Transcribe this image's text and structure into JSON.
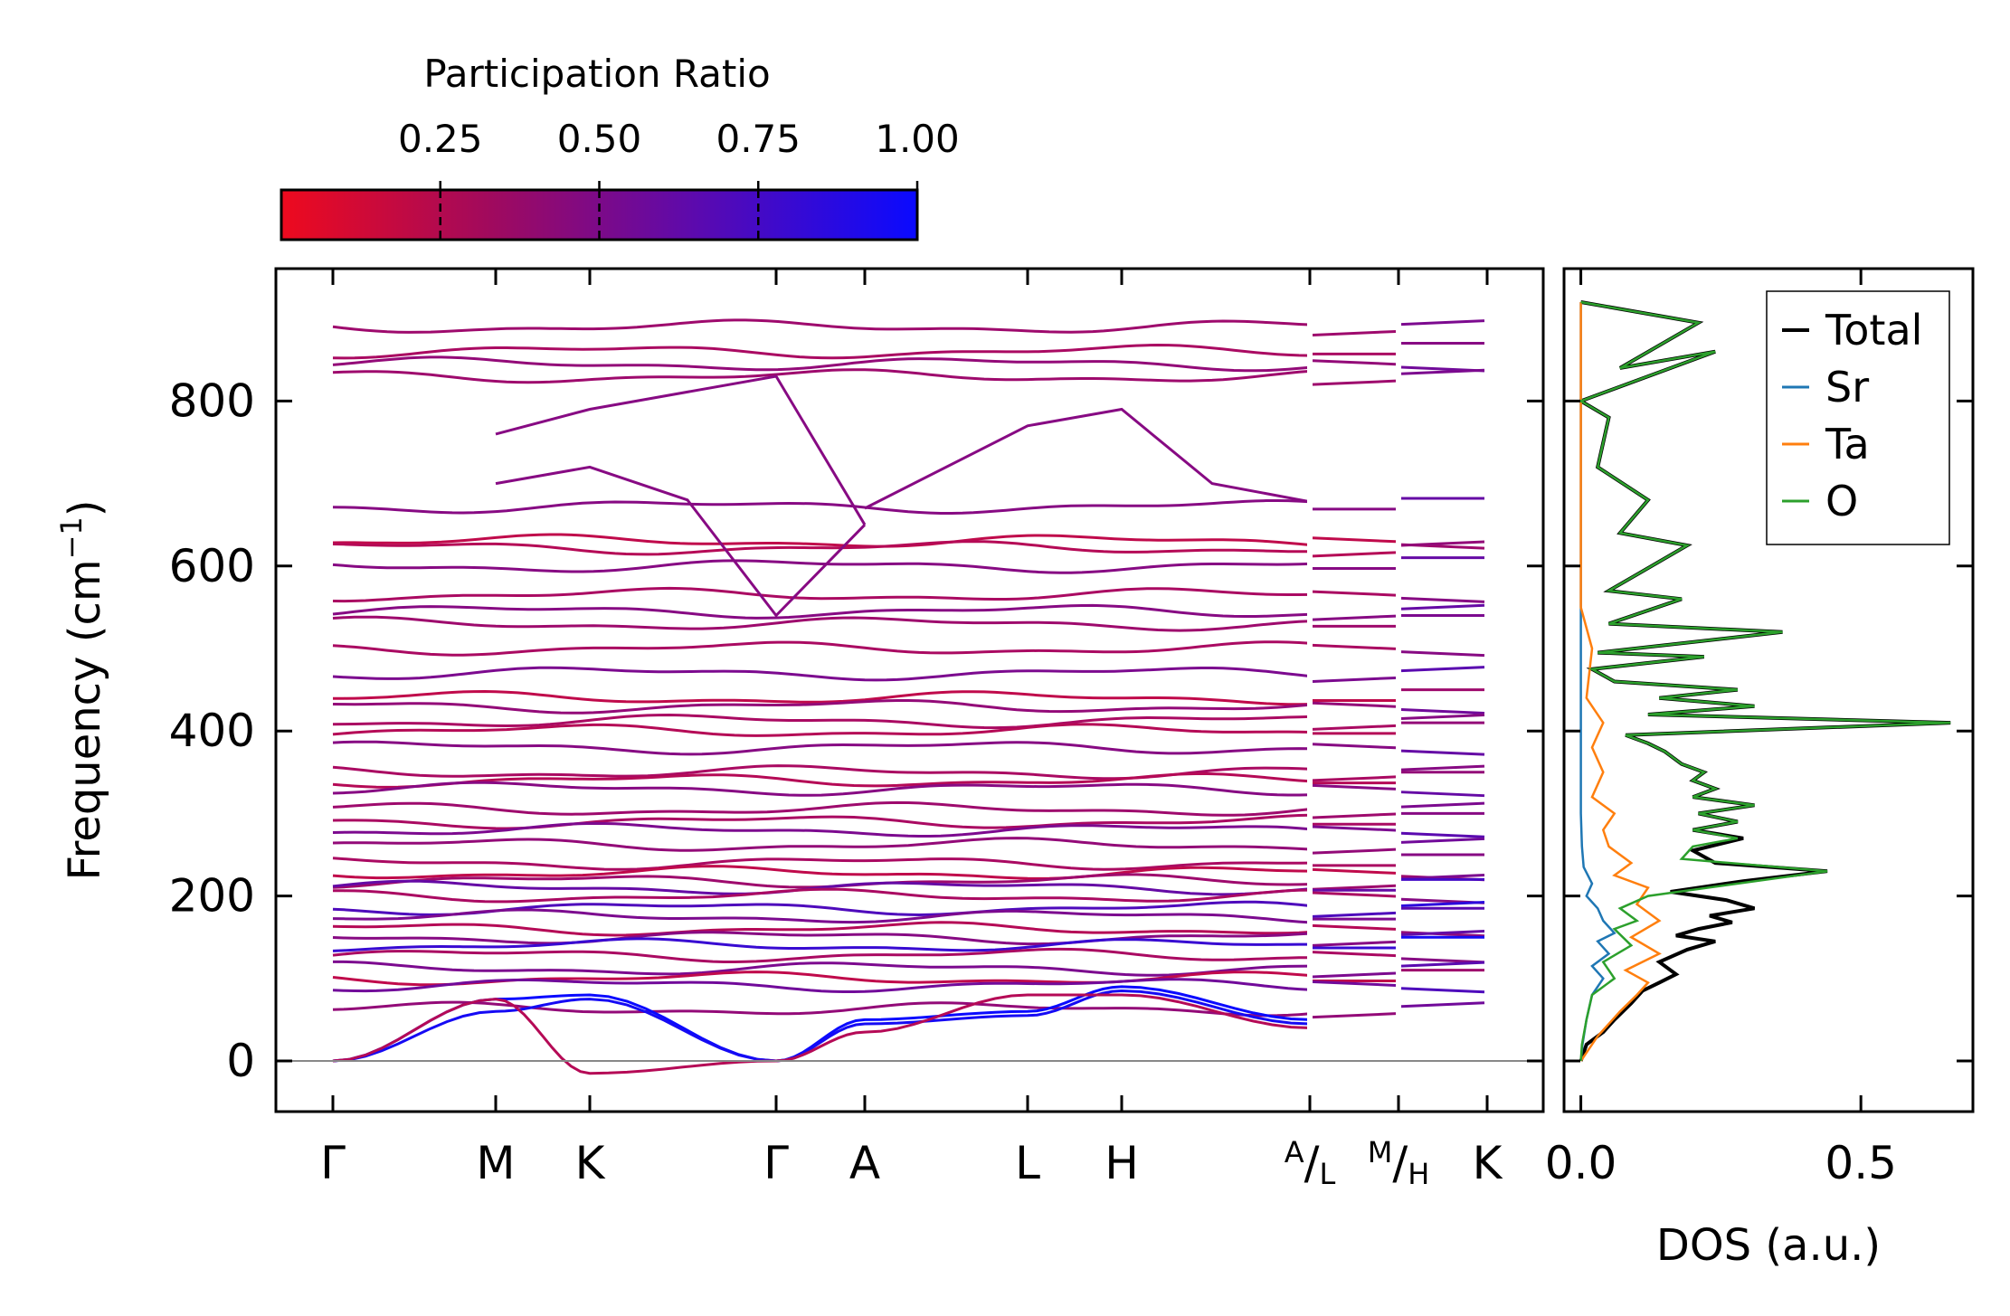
{
  "chart_data": [
    {
      "type": "line",
      "subtype": "phonon-band-structure",
      "ylabel": "Frequency (cm",
      "ylabel_sup": "−1",
      "ylabel_tail": ")",
      "ylim": [
        -60,
        960
      ],
      "yticks": [
        0,
        200,
        400,
        600,
        800
      ],
      "kpath_labels": [
        "Γ",
        "M",
        "K",
        "Γ",
        "A",
        "L",
        "H",
        "A",
        "L",
        "M",
        "H",
        "K"
      ],
      "kpath_segments": [
        {
          "from": "Γ",
          "to": "M",
          "length": 1.0
        },
        {
          "from": "M",
          "to": "K",
          "length": 0.577
        },
        {
          "from": "K",
          "to": "Γ",
          "length": 1.155
        },
        {
          "from": "Γ",
          "to": "A",
          "length": 0.55
        },
        {
          "from": "A",
          "to": "L",
          "length": 1.0
        },
        {
          "from": "L",
          "to": "H",
          "length": 0.577
        },
        {
          "from": "H",
          "to": "A",
          "length": 1.155
        },
        {
          "from": "L",
          "to": "M",
          "length": 0.55
        },
        {
          "from": "H",
          "to": "K",
          "length": 0.55
        }
      ],
      "zero_line": 0,
      "colorbar": {
        "label": "Participation Ratio",
        "range": [
          0.0,
          1.0
        ],
        "ticks": [
          "0.25",
          "0.50",
          "0.75",
          "1.00"
        ],
        "tick_values": [
          0.25,
          0.5,
          0.75,
          1.0
        ],
        "colormap": [
          "#ee0a1e",
          "#9a0a6a",
          "#5a0ab0",
          "#0a0aff"
        ]
      },
      "flat_bands": [
        {
          "f": 890,
          "pr": 0.35
        },
        {
          "f": 860,
          "pr": 0.3
        },
        {
          "f": 845,
          "pr": 0.4
        },
        {
          "f": 830,
          "pr": 0.35
        },
        {
          "f": 672,
          "pr": 0.45
        },
        {
          "f": 630,
          "pr": 0.2
        },
        {
          "f": 622,
          "pr": 0.25
        },
        {
          "f": 600,
          "pr": 0.45
        },
        {
          "f": 565,
          "pr": 0.3
        },
        {
          "f": 545,
          "pr": 0.45
        },
        {
          "f": 530,
          "pr": 0.35
        },
        {
          "f": 500,
          "pr": 0.3
        },
        {
          "f": 470,
          "pr": 0.5
        },
        {
          "f": 440,
          "pr": 0.2
        },
        {
          "f": 430,
          "pr": 0.4
        },
        {
          "f": 412,
          "pr": 0.3
        },
        {
          "f": 400,
          "pr": 0.25
        },
        {
          "f": 380,
          "pr": 0.45
        },
        {
          "f": 350,
          "pr": 0.3
        },
        {
          "f": 340,
          "pr": 0.25
        },
        {
          "f": 330,
          "pr": 0.45
        },
        {
          "f": 305,
          "pr": 0.35
        },
        {
          "f": 290,
          "pr": 0.3
        },
        {
          "f": 280,
          "pr": 0.5
        },
        {
          "f": 262,
          "pr": 0.4
        },
        {
          "f": 240,
          "pr": 0.3
        },
        {
          "f": 228,
          "pr": 0.2
        },
        {
          "f": 218,
          "pr": 0.35
        },
        {
          "f": 210,
          "pr": 0.6
        },
        {
          "f": 200,
          "pr": 0.3
        },
        {
          "f": 185,
          "pr": 0.7
        },
        {
          "f": 175,
          "pr": 0.5
        },
        {
          "f": 160,
          "pr": 0.25
        },
        {
          "f": 150,
          "pr": 0.45
        },
        {
          "f": 140,
          "pr": 0.8
        },
        {
          "f": 128,
          "pr": 0.3
        },
        {
          "f": 112,
          "pr": 0.5
        },
        {
          "f": 100,
          "pr": 0.2
        },
        {
          "f": 92,
          "pr": 0.55
        },
        {
          "f": 63,
          "pr": 0.4
        }
      ]
    },
    {
      "type": "line",
      "subtype": "density-of-states",
      "xlabel": "DOS (a.u.)",
      "xlim": [
        -0.03,
        0.7
      ],
      "xticks": [
        0.0,
        0.5
      ],
      "xtick_labels": [
        "0.0",
        "0.5"
      ],
      "ylim": [
        -60,
        960
      ],
      "legend_placement": "top-right",
      "series": [
        {
          "name": "Total",
          "color": "#000000",
          "points": [
            [
              0,
              0
            ],
            [
              0.01,
              20
            ],
            [
              0.04,
              35
            ],
            [
              0.06,
              50
            ],
            [
              0.09,
              70
            ],
            [
              0.11,
              85
            ],
            [
              0.14,
              95
            ],
            [
              0.17,
              105
            ],
            [
              0.14,
              120
            ],
            [
              0.19,
              135
            ],
            [
              0.24,
              145
            ],
            [
              0.17,
              152
            ],
            [
              0.21,
              160
            ],
            [
              0.27,
              168
            ],
            [
              0.23,
              176
            ],
            [
              0.31,
              185
            ],
            [
              0.26,
              195
            ],
            [
              0.16,
              205
            ],
            [
              0.29,
              218
            ],
            [
              0.44,
              230
            ],
            [
              0.24,
              240
            ],
            [
              0.2,
              255
            ],
            [
              0.29,
              270
            ],
            [
              0.2,
              280
            ],
            [
              0.28,
              290
            ],
            [
              0.21,
              300
            ],
            [
              0.31,
              310
            ],
            [
              0.2,
              320
            ],
            [
              0.24,
              330
            ],
            [
              0.2,
              340
            ],
            [
              0.22,
              350
            ],
            [
              0.18,
              360
            ],
            [
              0.15,
              375
            ],
            [
              0.12,
              385
            ],
            [
              0.08,
              395
            ],
            [
              0.66,
              410
            ],
            [
              0.12,
              420
            ],
            [
              0.31,
              430
            ],
            [
              0.14,
              440
            ],
            [
              0.28,
              450
            ],
            [
              0.06,
              460
            ],
            [
              0.02,
              475
            ],
            [
              0.22,
              490
            ],
            [
              0.03,
              495
            ],
            [
              0.36,
              520
            ],
            [
              0.05,
              530
            ],
            [
              0.18,
              560
            ],
            [
              0.05,
              570
            ],
            [
              0.19,
              625
            ],
            [
              0.07,
              640
            ],
            [
              0.12,
              680
            ],
            [
              0.03,
              720
            ],
            [
              0.05,
              780
            ],
            [
              0.0,
              800
            ],
            [
              0.24,
              860
            ],
            [
              0.07,
              840
            ],
            [
              0.21,
              895
            ],
            [
              0.0,
              920
            ]
          ]
        },
        {
          "name": "Sr",
          "color": "#1f77b4",
          "points": [
            [
              0,
              0
            ],
            [
              0.003,
              20
            ],
            [
              0.01,
              50
            ],
            [
              0.02,
              80
            ],
            [
              0.04,
              100
            ],
            [
              0.02,
              115
            ],
            [
              0.05,
              130
            ],
            [
              0.03,
              145
            ],
            [
              0.06,
              155
            ],
            [
              0.04,
              170
            ],
            [
              0.03,
              185
            ],
            [
              0.01,
              200
            ],
            [
              0.02,
              215
            ],
            [
              0.005,
              235
            ],
            [
              0.002,
              260
            ],
            [
              0.0,
              300
            ],
            [
              0.0,
              920
            ]
          ]
        },
        {
          "name": "Ta",
          "color": "#ff7f0e",
          "points": [
            [
              0,
              0
            ],
            [
              0.03,
              30
            ],
            [
              0.07,
              60
            ],
            [
              0.1,
              80
            ],
            [
              0.12,
              95
            ],
            [
              0.08,
              110
            ],
            [
              0.14,
              130
            ],
            [
              0.09,
              150
            ],
            [
              0.14,
              170
            ],
            [
              0.1,
              190
            ],
            [
              0.12,
              210
            ],
            [
              0.06,
              225
            ],
            [
              0.09,
              240
            ],
            [
              0.05,
              260
            ],
            [
              0.04,
              280
            ],
            [
              0.06,
              300
            ],
            [
              0.02,
              320
            ],
            [
              0.04,
              350
            ],
            [
              0.02,
              380
            ],
            [
              0.04,
              410
            ],
            [
              0.01,
              440
            ],
            [
              0.02,
              500
            ],
            [
              0.0,
              550
            ],
            [
              0.0,
              920
            ]
          ]
        },
        {
          "name": "O",
          "color": "#2ca02c",
          "points": [
            [
              0,
              0
            ],
            [
              0.002,
              20
            ],
            [
              0.01,
              50
            ],
            [
              0.02,
              80
            ],
            [
              0.06,
              100
            ],
            [
              0.04,
              120
            ],
            [
              0.09,
              140
            ],
            [
              0.06,
              160
            ],
            [
              0.1,
              170
            ],
            [
              0.07,
              185
            ],
            [
              0.12,
              200
            ],
            [
              0.44,
              230
            ],
            [
              0.18,
              245
            ],
            [
              0.2,
              260
            ],
            [
              0.28,
              270
            ],
            [
              0.2,
              280
            ],
            [
              0.28,
              290
            ],
            [
              0.21,
              300
            ],
            [
              0.31,
              310
            ],
            [
              0.2,
              320
            ],
            [
              0.24,
              330
            ],
            [
              0.2,
              340
            ],
            [
              0.22,
              350
            ],
            [
              0.18,
              360
            ],
            [
              0.15,
              375
            ],
            [
              0.12,
              385
            ],
            [
              0.08,
              395
            ],
            [
              0.66,
              410
            ],
            [
              0.12,
              420
            ],
            [
              0.31,
              430
            ],
            [
              0.14,
              440
            ],
            [
              0.28,
              450
            ],
            [
              0.06,
              460
            ],
            [
              0.02,
              475
            ],
            [
              0.22,
              490
            ],
            [
              0.03,
              495
            ],
            [
              0.36,
              520
            ],
            [
              0.05,
              530
            ],
            [
              0.18,
              560
            ],
            [
              0.05,
              570
            ],
            [
              0.19,
              625
            ],
            [
              0.07,
              640
            ],
            [
              0.12,
              680
            ],
            [
              0.03,
              720
            ],
            [
              0.05,
              780
            ],
            [
              0.0,
              800
            ],
            [
              0.24,
              860
            ],
            [
              0.07,
              840
            ],
            [
              0.21,
              895
            ],
            [
              0.0,
              920
            ]
          ]
        }
      ]
    }
  ]
}
